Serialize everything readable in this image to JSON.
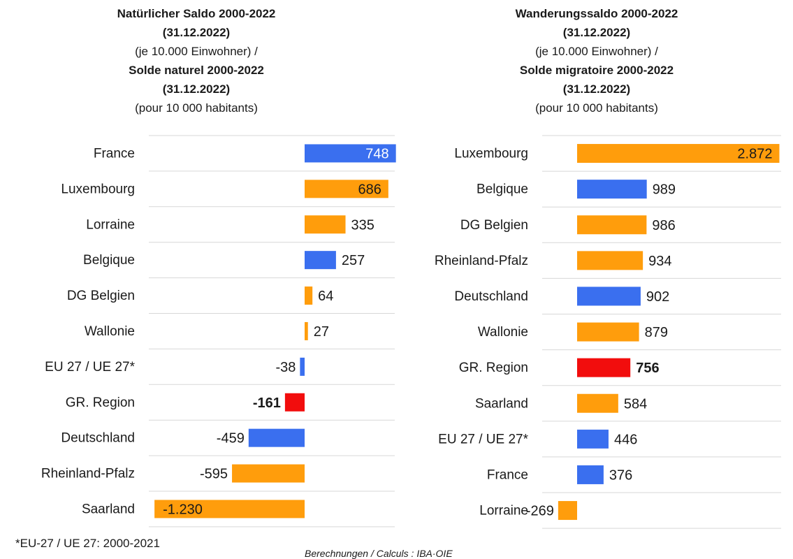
{
  "colors": {
    "blue": "#3a6fef",
    "orange": "#ff9d0c",
    "red": "#f20d0d",
    "grid": "#d7d7d7"
  },
  "left_title": {
    "line1": "Natürlicher Saldo 2000-2022",
    "line2": "(31.12.2022)",
    "line3": "(je 10.000 Einwohner) /",
    "line4": "Solde naturel 2000-2022",
    "line5": "(31.12.2022)",
    "line6": "(pour 10 000 habitants)"
  },
  "right_title": {
    "line1": "Wanderungssaldo 2000-2022",
    "line2": "(31.12.2022)",
    "line3": "(je 10.000 Einwohner) /",
    "line4": "Solde migratoire 2000-2022",
    "line5": "(31.12.2022)",
    "line6": "(pour 10 000 habitants)"
  },
  "footnote": "*EU-27 / UE 27: 2000-2021",
  "credit": "Berechnungen / Calculs : IBA·OIE",
  "chart_data": [
    {
      "type": "bar",
      "orientation": "horizontal",
      "title": "Natürlicher Saldo 2000-2022 (31.12.2022) (je 10.000 Einwohner) / Solde naturel 2000-2022 (31.12.2022) (pour 10 000 habitants)",
      "categories": [
        "France",
        "Luxembourg",
        "Lorraine",
        "Belgique",
        "DG Belgien",
        "Wallonie",
        "EU 27 / UE 27*",
        "GR. Region",
        "Deutschland",
        "Rheinland-Pfalz",
        "Saarland"
      ],
      "values": [
        748,
        686,
        335,
        257,
        64,
        27,
        -38,
        -161,
        -459,
        -595,
        -1230
      ],
      "labels": [
        "748",
        "686",
        "335",
        "257",
        "64",
        "27",
        "-38",
        "-161",
        "-459",
        "-595",
        "-1.230"
      ],
      "colors": [
        "blue",
        "orange",
        "orange",
        "blue",
        "orange",
        "orange",
        "blue",
        "red",
        "blue",
        "orange",
        "orange"
      ],
      "bold": [
        false,
        false,
        false,
        false,
        false,
        false,
        false,
        true,
        false,
        false,
        false
      ],
      "inside_label": [
        true,
        true,
        false,
        false,
        false,
        false,
        false,
        false,
        false,
        false,
        true
      ],
      "xlim": [
        -1230,
        748
      ],
      "grid": true
    },
    {
      "type": "bar",
      "orientation": "horizontal",
      "title": "Wanderungssaldo 2000-2022 (31.12.2022) (je 10.000 Einwohner) / Solde migratoire 2000-2022 (31.12.2022) (pour 10 000 habitants)",
      "categories": [
        "Luxembourg",
        "Belgique",
        "DG Belgien",
        "Rheinland-Pfalz",
        "Deutschland",
        "Wallonie",
        "GR. Region",
        "Saarland",
        "EU 27 / UE 27*",
        "France",
        "Lorraine"
      ],
      "values": [
        2872,
        989,
        986,
        934,
        902,
        879,
        756,
        584,
        446,
        376,
        -269
      ],
      "labels": [
        "2.872",
        "989",
        "986",
        "934",
        "902",
        "879",
        "756",
        "584",
        "446",
        "376",
        "-269"
      ],
      "colors": [
        "orange",
        "blue",
        "orange",
        "orange",
        "blue",
        "orange",
        "red",
        "orange",
        "blue",
        "blue",
        "orange"
      ],
      "bold": [
        false,
        false,
        false,
        false,
        false,
        false,
        true,
        false,
        false,
        false,
        false
      ],
      "inside_label": [
        true,
        false,
        false,
        false,
        false,
        false,
        false,
        false,
        false,
        false,
        false
      ],
      "xlim": [
        -269,
        2872
      ],
      "grid": true
    }
  ]
}
